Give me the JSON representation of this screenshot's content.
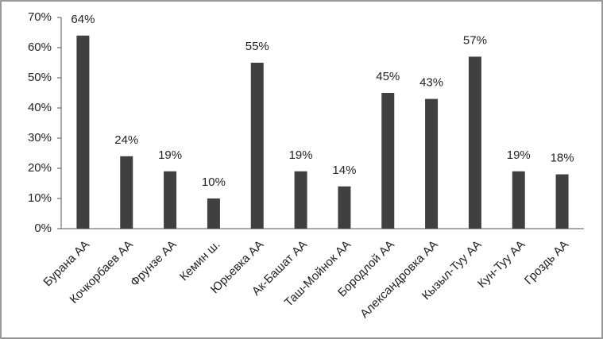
{
  "chart_data": {
    "type": "bar",
    "categories": [
      "Бурана АА",
      "Кочкорбаев АА",
      "Фрунзе АА",
      "Кемин ш.",
      "Юрьевка АА",
      "Ак-Башат АА",
      "Таш-Мойнок АА",
      "Бородлой АА",
      "Александровка АА",
      "Кызыл-Туу АА",
      "Кун-Туу АА",
      "Гроздь АА"
    ],
    "values": [
      64,
      24,
      19,
      10,
      55,
      19,
      14,
      45,
      43,
      57,
      19,
      18
    ],
    "value_labels": [
      "64%",
      "24%",
      "19%",
      "10%",
      "55%",
      "19%",
      "14%",
      "45%",
      "43%",
      "57%",
      "19%",
      "18%"
    ],
    "color": "#404040",
    "ylim": [
      0,
      70
    ],
    "yticks": [
      {
        "value": 0,
        "label": "0%"
      },
      {
        "value": 10,
        "label": "10%"
      },
      {
        "value": 20,
        "label": "20%"
      },
      {
        "value": 30,
        "label": "30%"
      },
      {
        "value": 40,
        "label": "40%"
      },
      {
        "value": 50,
        "label": "50%"
      },
      {
        "value": 60,
        "label": "60%"
      },
      {
        "value": 70,
        "label": "70%"
      }
    ]
  }
}
